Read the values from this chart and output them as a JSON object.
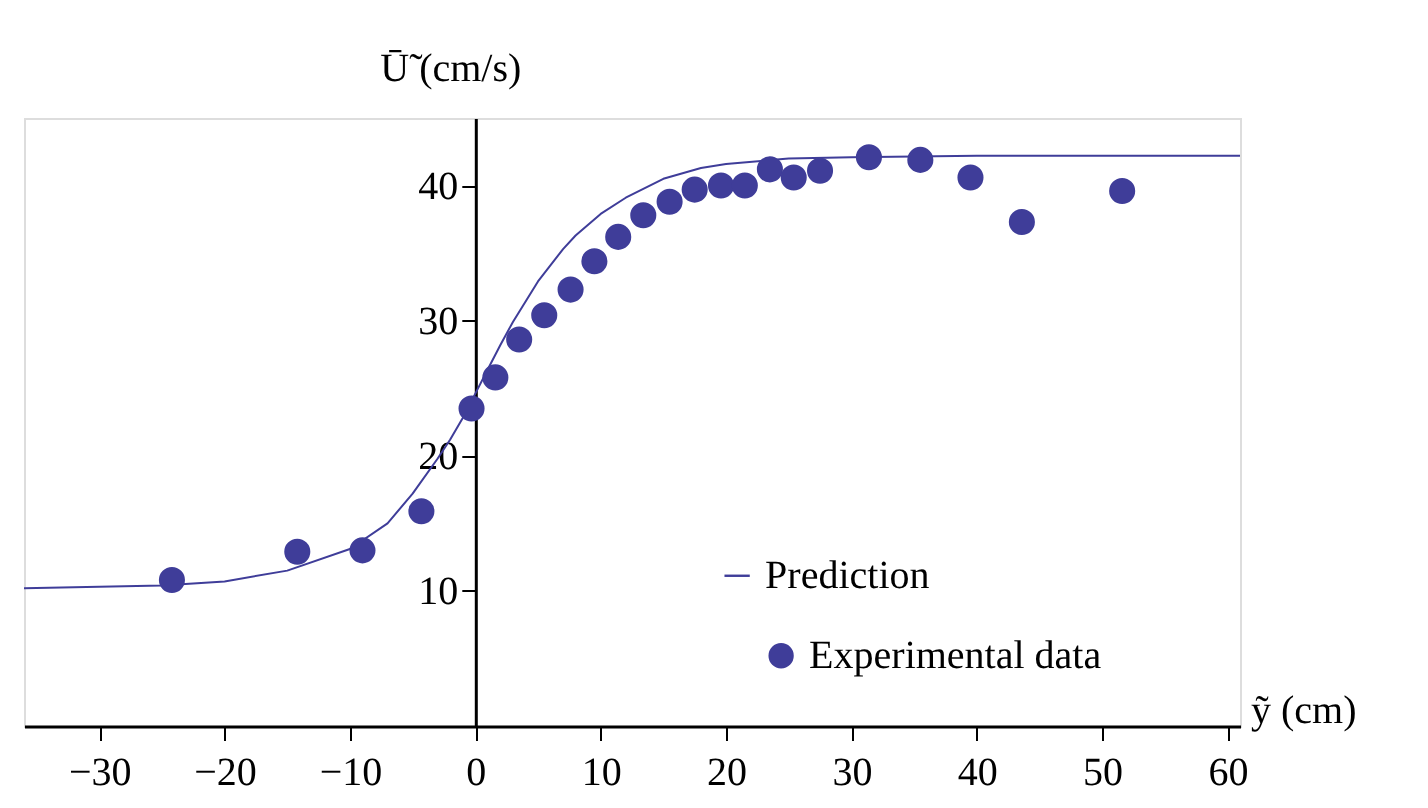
{
  "chart_data": {
    "type": "scatter",
    "xlabel": "ỹ (cm)",
    "ylabel": "Ū̃ (cm/s)",
    "xlim": [
      -36,
      61
    ],
    "ylim": [
      0,
      45
    ],
    "xticks": [
      -30,
      -20,
      -10,
      0,
      10,
      20,
      30,
      40,
      50,
      60
    ],
    "yticks": [
      10,
      20,
      30,
      40
    ],
    "grid": false,
    "legend": "bottom right",
    "series": [
      {
        "name": "Prediction",
        "type": "line",
        "color": "#3f3d99",
        "line_style": "solid",
        "marker": "none",
        "x": [
          -36,
          -30,
          -25,
          -20,
          -15,
          -10,
          -7,
          -5,
          -3,
          -2,
          -1,
          0,
          1,
          2,
          3,
          5,
          7,
          8,
          10,
          12,
          15,
          18,
          20,
          25,
          30,
          40,
          50,
          61
        ],
        "values": [
          10.2,
          10.3,
          10.4,
          10.7,
          11.5,
          13.1,
          15.0,
          17.2,
          19.8,
          21.2,
          22.8,
          24.6,
          26.4,
          28.2,
          29.9,
          32.9,
          35.3,
          36.3,
          37.9,
          39.1,
          40.5,
          41.3,
          41.6,
          42.0,
          42.1,
          42.2,
          42.2,
          42.2
        ]
      },
      {
        "name": "Experimental data",
        "color": "#3f3d99",
        "marker": "circle",
        "x": [
          -24.2,
          -14.2,
          -9.0,
          -4.3,
          -0.3,
          1.6,
          3.5,
          5.5,
          7.6,
          9.5,
          11.4,
          13.4,
          15.5,
          17.5,
          19.6,
          21.5,
          23.5,
          25.4,
          27.5,
          31.4,
          35.5,
          39.5,
          43.6,
          51.6
        ],
        "values": [
          10.8,
          12.9,
          13.0,
          15.9,
          23.5,
          25.8,
          28.6,
          30.4,
          32.3,
          34.4,
          36.2,
          37.8,
          38.8,
          39.7,
          40.0,
          40.0,
          41.2,
          40.6,
          41.1,
          42.1,
          41.9,
          40.6,
          37.3,
          39.6
        ]
      }
    ]
  }
}
